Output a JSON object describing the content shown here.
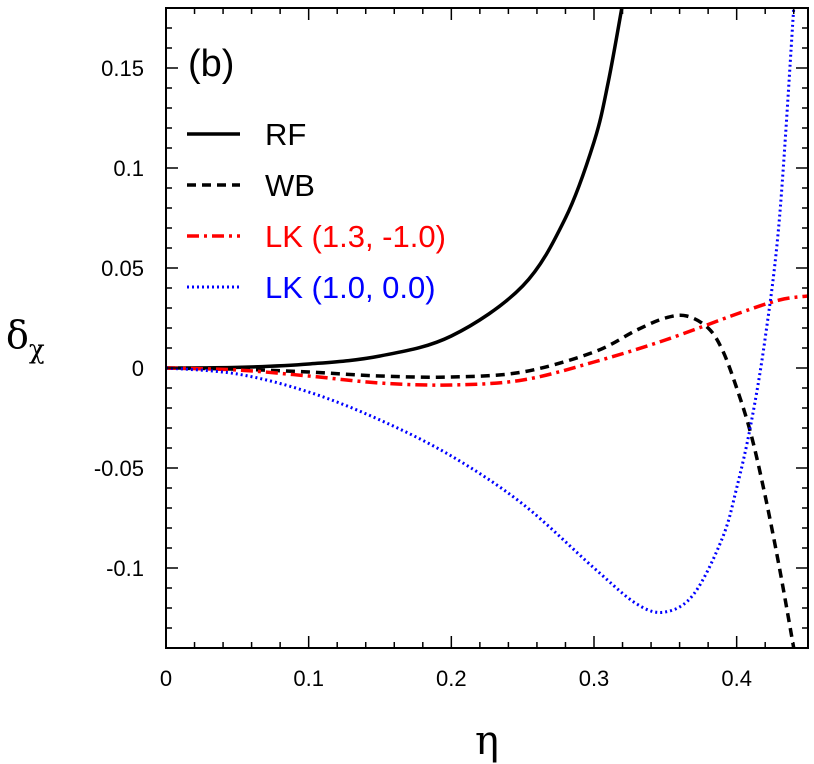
{
  "chart_data": {
    "type": "line",
    "panel_label": "(b)",
    "xlabel": "η",
    "ylabel": {
      "base": "δ",
      "sub": "χ"
    },
    "xlim": [
      0,
      0.45
    ],
    "ylim": [
      -0.14,
      0.18
    ],
    "xticks": [
      0,
      0.1,
      0.2,
      0.3,
      0.4
    ],
    "xtick_labels": [
      "0",
      "0.1",
      "0.2",
      "0.3",
      "0.4"
    ],
    "yticks": [
      -0.1,
      -0.05,
      0,
      0.05,
      0.1,
      0.15
    ],
    "ytick_labels": [
      "-0.1",
      "-0.05",
      "0",
      "0.05",
      "0.1",
      "0.15"
    ],
    "grid": false,
    "legend_position": "upper-left",
    "series": [
      {
        "name": "RF",
        "color": "#000000",
        "style": "solid",
        "x": [
          0,
          0.05,
          0.1,
          0.15,
          0.2,
          0.25,
          0.28,
          0.3,
          0.31,
          0.32
        ],
        "y": [
          0,
          0.0003,
          0.002,
          0.006,
          0.016,
          0.041,
          0.075,
          0.113,
          0.143,
          0.182
        ]
      },
      {
        "name": "WB",
        "color": "#000000",
        "style": "dashed",
        "x": [
          0,
          0.05,
          0.1,
          0.15,
          0.2,
          0.25,
          0.3,
          0.33,
          0.35,
          0.365,
          0.38,
          0.39,
          0.4,
          0.41,
          0.42,
          0.43,
          0.44
        ],
        "y": [
          0,
          -0.0006,
          -0.002,
          -0.004,
          -0.0045,
          -0.002,
          0.008,
          0.019,
          0.025,
          0.026,
          0.02,
          0.009,
          -0.01,
          -0.033,
          -0.064,
          -0.1,
          -0.14
        ]
      },
      {
        "name": "LK (1.3, -1.0)",
        "color": "#ff0000",
        "style": "dashdot",
        "x": [
          0,
          0.05,
          0.1,
          0.15,
          0.2,
          0.25,
          0.3,
          0.35,
          0.4,
          0.43,
          0.45
        ],
        "y": [
          0,
          -0.001,
          -0.004,
          -0.0075,
          -0.0085,
          -0.006,
          0.003,
          0.014,
          0.027,
          0.034,
          0.036
        ]
      },
      {
        "name": "LK (1.0, 0.0)",
        "color": "#0000ff",
        "style": "dotted",
        "x": [
          0,
          0.05,
          0.1,
          0.15,
          0.2,
          0.25,
          0.3,
          0.33,
          0.35,
          0.37,
          0.39,
          0.4,
          0.41,
          0.42,
          0.43,
          0.44
        ],
        "y": [
          0,
          -0.003,
          -0.012,
          -0.026,
          -0.044,
          -0.068,
          -0.1,
          -0.118,
          -0.122,
          -0.113,
          -0.085,
          -0.06,
          -0.028,
          0.015,
          0.075,
          0.18
        ]
      }
    ]
  }
}
